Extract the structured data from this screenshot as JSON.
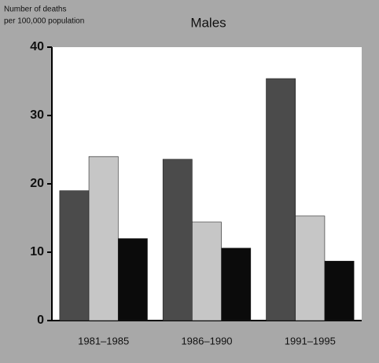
{
  "chart_data": {
    "type": "bar",
    "title": "Males",
    "y_label": [
      "Number of deaths",
      "per 100,000 population"
    ],
    "categories": [
      "1981–1985",
      "1986–1990",
      "1991–1995"
    ],
    "series": [
      {
        "color": "#4b4b4b",
        "values": [
          19,
          23.6,
          35.4
        ]
      },
      {
        "color": "#c6c6c6",
        "values": [
          24,
          14.4,
          15.3
        ]
      },
      {
        "color": "#0b0b0b",
        "values": [
          12,
          10.6,
          8.7
        ]
      }
    ],
    "ylim": [
      0,
      40
    ],
    "yticks": [
      0,
      10,
      20,
      30,
      40
    ]
  }
}
